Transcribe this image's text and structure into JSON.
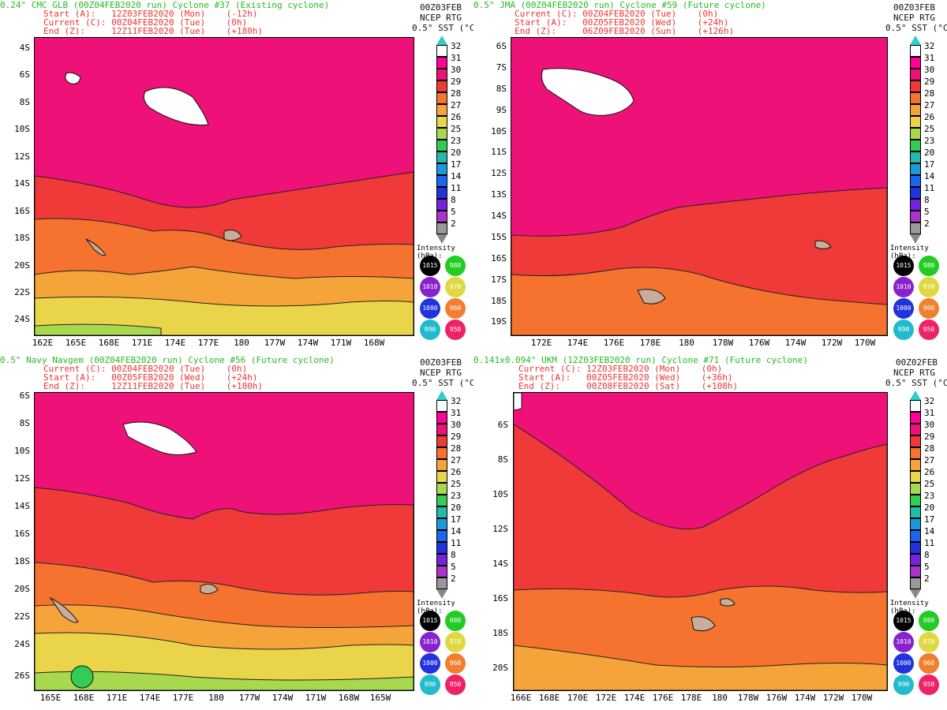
{
  "colorbar": {
    "levels": [
      "32",
      "31",
      "30",
      "29",
      "28",
      "27",
      "26",
      "25",
      "23",
      "20",
      "17",
      "14",
      "11",
      "8",
      "5",
      "2"
    ],
    "colors": [
      "#ffffff",
      "#ff0099",
      "#ee1177",
      "#f03a3a",
      "#f5732e",
      "#f5a43a",
      "#ead54a",
      "#a8d84e",
      "#33cc55",
      "#22bbaa",
      "#1a99dd",
      "#1a66ee",
      "#2233dd",
      "#7722dd",
      "#aa33cc",
      "#999999"
    ]
  },
  "intensity": {
    "title": "Intensity (hPa):",
    "items": [
      {
        "label": "1015",
        "color": "#000000"
      },
      {
        "label": "980",
        "color": "#22cc22"
      },
      {
        "label": "1010",
        "color": "#8822cc"
      },
      {
        "label": "970",
        "color": "#e0d840"
      },
      {
        "label": "1000",
        "color": "#2233dd"
      },
      {
        "label": "960",
        "color": "#f08030"
      },
      {
        "label": "990",
        "color": "#22bbcc"
      },
      {
        "label": "950",
        "color": "#ee2266"
      }
    ]
  },
  "panels": [
    {
      "id": "p1",
      "title": "0.24° CMC GLB (00Z04FEB2020 run) Cyclone #37 (Existing cyclone)",
      "line1": "Start (A):   12Z03FEB2020 (Mon)    (-12h)",
      "line2": "Current (C): 00Z04FEB2020 (Tue)    (0h)",
      "line3": "End (Z):     12Z11FEB2020 (Tue)    (+180h)",
      "right1": "00Z03FEB",
      "right2": "NCEP RTG",
      "right3": "0.5° SST (°C)",
      "lats": [
        "4S",
        "6S",
        "8S",
        "10S",
        "12S",
        "14S",
        "16S",
        "18S",
        "20S",
        "22S",
        "24S"
      ],
      "lons": [
        "162E",
        "165E",
        "168E",
        "171E",
        "174E",
        "177E",
        "180",
        "177W",
        "174W",
        "171W",
        "168W"
      ]
    },
    {
      "id": "p2",
      "title": "0.5° JMA (00Z04FEB2020 run) Cyclone #59 (Future cyclone)",
      "line1": "Current (C): 00Z04FEB2020 (Tue)    (0h)",
      "line2": "Start (A):   00Z05FEB2020 (Wed)    (+24h)",
      "line3": "End (Z):     06Z09FEB2020 (Sun)    (+126h)",
      "right1": "00Z03FEB",
      "right2": "NCEP RTG",
      "right3": "0.5° SST (°C)",
      "lats": [
        "6S",
        "7S",
        "8S",
        "9S",
        "10S",
        "11S",
        "12S",
        "13S",
        "14S",
        "15S",
        "16S",
        "17S",
        "18S",
        "19S"
      ],
      "lons": [
        "172E",
        "174E",
        "176E",
        "178E",
        "180",
        "178W",
        "176W",
        "174W",
        "172W",
        "170W"
      ]
    },
    {
      "id": "p3",
      "title": "0.5° Navy Navgem (00Z04FEB2020 run) Cyclone #56 (Future cyclone)",
      "line1": "Current (C): 00Z04FEB2020 (Tue)    (0h)",
      "line2": "Start (A):   00Z05FEB2020 (Wed)    (+24h)",
      "line3": "End (Z):     12Z11FEB2020 (Tue)    (+180h)",
      "right1": "00Z03FEB",
      "right2": "NCEP RTG",
      "right3": "0.5° SST (°C)",
      "lats": [
        "6S",
        "8S",
        "10S",
        "12S",
        "14S",
        "16S",
        "18S",
        "20S",
        "22S",
        "24S",
        "26S"
      ],
      "lons": [
        "165E",
        "168E",
        "171E",
        "174E",
        "177E",
        "180",
        "177W",
        "174W",
        "171W",
        "168W",
        "165W"
      ]
    },
    {
      "id": "p4",
      "title": "0.141x0.094° UKM (12Z03FEB2020 run) Cyclone #71 (Future cyclone)",
      "line1": "Current (C): 12Z03FEB2020 (Mon)    (0h)",
      "line2": "Start (A):   00Z05FEB2020 (Wed)    (+36h)",
      "line3": "End (Z):     00Z08FEB2020 (Sat)    (+108h)",
      "right1": "00Z02FEB",
      "right2": "NCEP RTG",
      "right3": "0.5° SST (°C)",
      "lats": [
        "6S",
        "8S",
        "10S",
        "12S",
        "14S",
        "16S",
        "18S",
        "20S"
      ],
      "lons": [
        "166E",
        "168E",
        "170E",
        "172E",
        "174E",
        "176E",
        "178E",
        "180",
        "178W",
        "176W",
        "174W",
        "172W",
        "170W"
      ]
    }
  ]
}
